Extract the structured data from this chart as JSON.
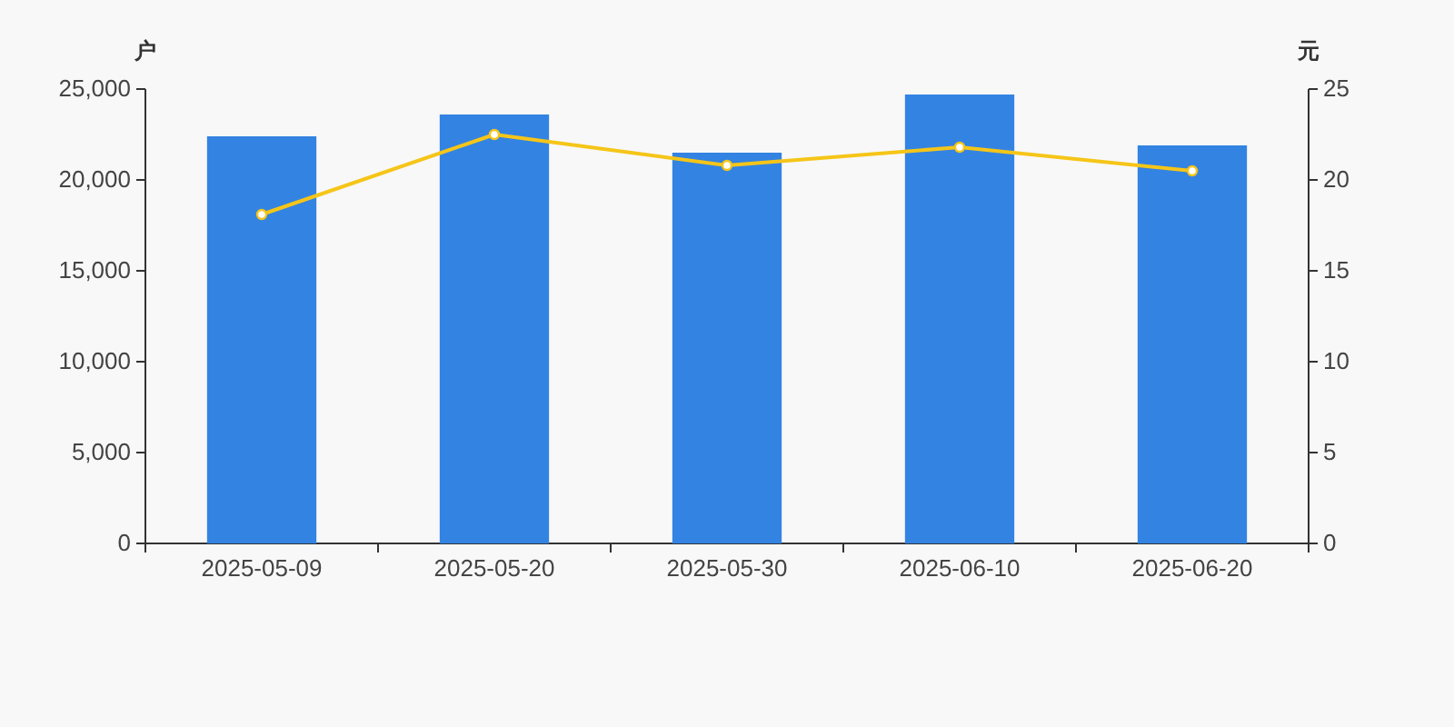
{
  "chart_data": {
    "type": "bar",
    "ylabel": "户",
    "y2label": "元",
    "categories": [
      "2025-05-09",
      "2025-05-20",
      "2025-05-30",
      "2025-06-10",
      "2025-06-20"
    ],
    "series": [
      {
        "color": "#3383e2",
        "values": [
          22400,
          23600,
          21500,
          24700,
          21900
        ]
      },
      {
        "type": "line",
        "axis": "y2",
        "color": "#f5c518",
        "marker": "circle",
        "values": [
          18.1,
          22.5,
          20.8,
          21.8,
          20.5
        ]
      }
    ],
    "ylim": [
      0,
      25000
    ],
    "yticks": [
      0,
      {
        "value": 5000,
        "label": "5,000"
      },
      {
        "value": 10000,
        "label": "10,000"
      },
      {
        "value": 15000,
        "label": "15,000"
      },
      {
        "value": 20000,
        "label": "20,000"
      },
      {
        "value": 25000,
        "label": "25,000"
      }
    ],
    "y2lim": [
      0,
      25
    ],
    "y2ticks": [
      0,
      5,
      10,
      15,
      20,
      25
    ],
    "grid": false
  }
}
